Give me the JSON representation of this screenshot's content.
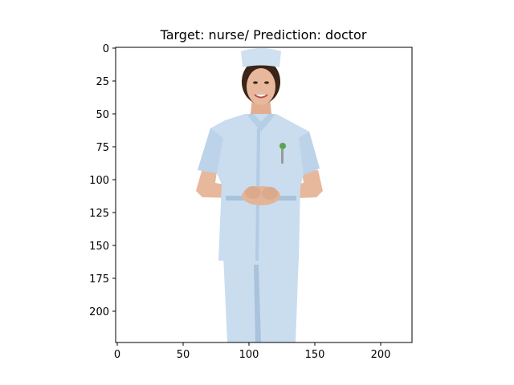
{
  "figure": {
    "title": "Target: nurse/ Prediction: doctor",
    "image_description": "photo of a smiling woman in a light blue nurse uniform and cap, hands clasped at waist, white background"
  },
  "axes": {
    "x_ticks": [
      0,
      50,
      100,
      150,
      200
    ],
    "y_ticks": [
      0,
      25,
      50,
      75,
      100,
      125,
      150,
      175,
      200
    ],
    "x_range": [
      0,
      224
    ],
    "y_range": [
      0,
      224
    ],
    "y_inverted": true
  },
  "colors": {
    "uniform": "#c9ddef",
    "uniform_shadow": "#a9c3dc",
    "skin": "#e7b89c",
    "hair": "#3b2418",
    "background": "#ffffff"
  }
}
